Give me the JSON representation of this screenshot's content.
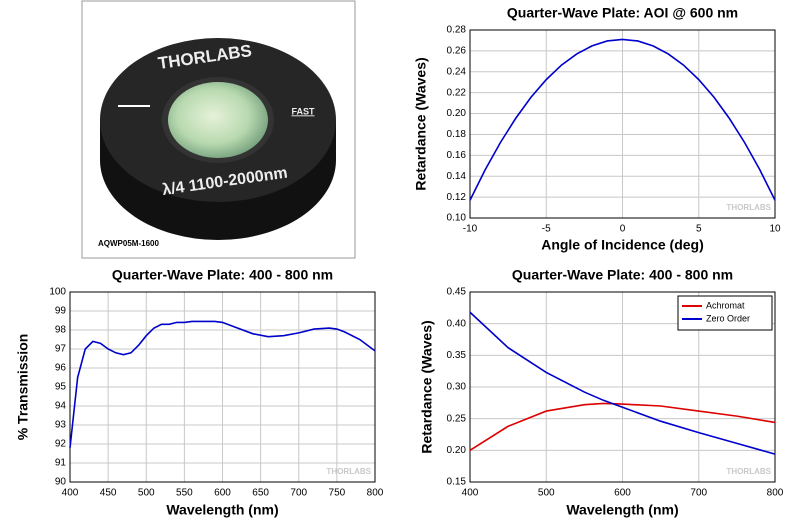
{
  "photo": {
    "brand": "THORLABS",
    "engraving": "λ/4 1100-2000nm",
    "axis_mark": "FAST",
    "part_number": "AQWP05M-1600"
  },
  "chart_data": [
    {
      "type": "line",
      "title": "Quarter-Wave Plate: AOI @ 600 nm",
      "x_label": "Angle of Incidence (deg)",
      "y_label": "Retardance (Waves)",
      "watermark": "THORLABS",
      "color": "#0000cc",
      "grid": true,
      "x": [
        -10,
        -9,
        -8,
        -7,
        -6,
        -5,
        -4,
        -3,
        -2,
        -1,
        0,
        1,
        2,
        3,
        4,
        5,
        6,
        7,
        8,
        9,
        10
      ],
      "values": [
        0.117,
        0.1463,
        0.1724,
        0.1955,
        0.2156,
        0.2325,
        0.2464,
        0.2571,
        0.2648,
        0.2695,
        0.271,
        0.2695,
        0.2648,
        0.2571,
        0.2464,
        0.2325,
        0.2156,
        0.1955,
        0.1724,
        0.1463,
        0.117
      ],
      "xlim": [
        -10,
        10
      ],
      "xticks": [
        -10,
        -5,
        0,
        5,
        10
      ],
      "ylim": [
        0.1,
        0.28
      ],
      "yticks": [
        {
          "value": 0.1,
          "label": "0.10"
        },
        0.12,
        0.14,
        0.16,
        0.18,
        {
          "value": 0.2,
          "label": "0.20"
        },
        0.22,
        0.24,
        0.26,
        0.28
      ]
    },
    {
      "type": "line",
      "title": "Quarter-Wave Plate: 400 - 800 nm",
      "x_label": "Wavelength (nm)",
      "y_label": "% Transmission",
      "watermark": "THORLABS",
      "color": "#0000cc",
      "grid": true,
      "x": [
        400,
        410,
        420,
        430,
        440,
        450,
        460,
        470,
        480,
        490,
        500,
        510,
        520,
        530,
        540,
        550,
        560,
        570,
        580,
        590,
        600,
        620,
        640,
        660,
        680,
        700,
        720,
        740,
        750,
        760,
        780,
        800
      ],
      "values": [
        91.8,
        95.5,
        97.0,
        97.4,
        97.3,
        97.0,
        96.8,
        96.7,
        96.8,
        97.2,
        97.7,
        98.1,
        98.3,
        98.3,
        98.4,
        98.4,
        98.45,
        98.45,
        98.45,
        98.45,
        98.4,
        98.1,
        97.8,
        97.65,
        97.7,
        97.85,
        98.05,
        98.1,
        98.05,
        97.9,
        97.5,
        96.9
      ],
      "xlim": [
        400,
        800
      ],
      "xticks": [
        400,
        450,
        500,
        550,
        600,
        650,
        700,
        750,
        800
      ],
      "ylim": [
        90,
        100
      ],
      "yticks": [
        90,
        91,
        92,
        93,
        94,
        95,
        96,
        97,
        98,
        99,
        100
      ]
    },
    {
      "type": "line",
      "title": "Quarter-Wave Plate: 400 - 800 nm",
      "x_label": "Wavelength (nm)",
      "y_label": "Retardance (Waves)",
      "watermark": "THORLABS",
      "grid": true,
      "legend": "top-right",
      "x": [
        400,
        450,
        500,
        550,
        575,
        600,
        650,
        700,
        750,
        800
      ],
      "series": [
        {
          "name": "Achromat",
          "color": "#dd0000",
          "values": [
            0.2,
            0.238,
            0.262,
            0.272,
            0.274,
            0.273,
            0.27,
            0.262,
            0.254,
            0.244
          ]
        },
        {
          "name": "Zero Order",
          "color": "#0000cc",
          "values": [
            0.418,
            0.362,
            0.323,
            0.292,
            0.279,
            0.268,
            0.246,
            0.228,
            0.211,
            0.194
          ]
        }
      ],
      "xlim": [
        400,
        800
      ],
      "xticks": [
        400,
        500,
        600,
        700,
        800
      ],
      "ylim": [
        0.15,
        0.45
      ],
      "yticks": [
        0.15,
        {
          "value": 0.2,
          "label": "0.20"
        },
        0.25,
        {
          "value": 0.3,
          "label": "0.30"
        },
        0.35,
        {
          "value": 0.4,
          "label": "0.40"
        },
        0.45
      ]
    }
  ]
}
